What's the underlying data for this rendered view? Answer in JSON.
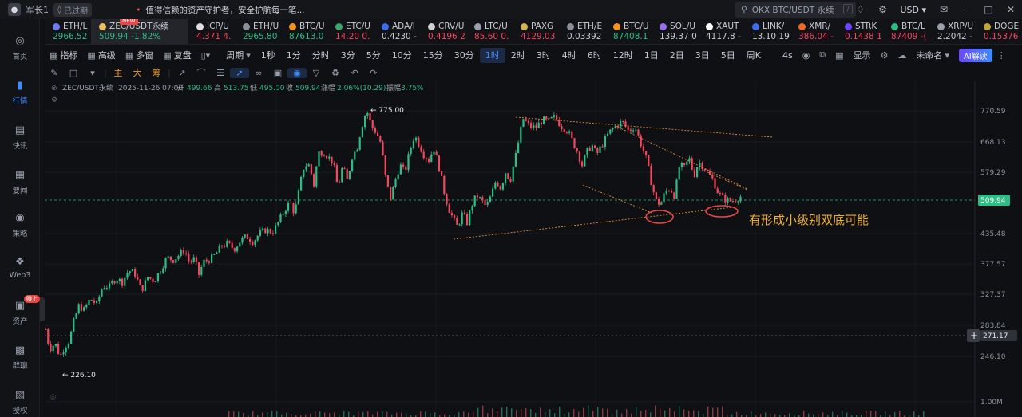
{
  "topbar": {
    "username": "军长1",
    "expired_label": "已过期",
    "notice": "值得信赖的资产守护者，安全护航每一笔...",
    "search_placeholder": "OKX BTC/USDT 永续",
    "search_shortcut": "/",
    "currency": "USD"
  },
  "sidebar": {
    "items": [
      {
        "label": "首页",
        "icon": "home-icon"
      },
      {
        "label": "行情",
        "icon": "bar-chart-icon"
      },
      {
        "label": "快讯",
        "icon": "news-icon"
      },
      {
        "label": "要闻",
        "icon": "article-icon"
      },
      {
        "label": "策略",
        "icon": "strategy-icon"
      },
      {
        "label": "Web3",
        "icon": "web3-icon"
      },
      {
        "label": "资产",
        "icon": "wallet-icon",
        "badge": "赚上"
      },
      {
        "label": "群聊",
        "icon": "chat-icon"
      },
      {
        "label": "授权",
        "icon": "key-icon"
      }
    ]
  },
  "tickers": [
    {
      "name": "ETH/L",
      "price": "2966.52",
      "color": "#2ebd85",
      "dot": "#6c7cf0"
    },
    {
      "name": "ZEC/USDT永续",
      "price": "509.94",
      "change": "-1.82%",
      "active": true,
      "badge": "NEW",
      "dot": "#f0c060"
    },
    {
      "name": "ICP/U",
      "price": "4.371",
      "extra": "4.",
      "color": "#f6465d",
      "dot": "#e0e0e0"
    },
    {
      "name": "ETH/U",
      "price": "2965.80",
      "color": "#2ebd85",
      "dot": "#8a8f99"
    },
    {
      "name": "BTC/U",
      "price": "87613.0",
      "color": "#2ebd85",
      "dot": "#f7931a"
    },
    {
      "name": "ETC/U",
      "price": "14.20",
      "extra": "0.",
      "color": "#f6465d",
      "dot": "#3fa66b"
    },
    {
      "name": "ADA/I",
      "price": "0.4230",
      "extra": "-",
      "color": "#c9ccd3",
      "dot": "#3d6cf0"
    },
    {
      "name": "CRV/U",
      "price": "0.4196",
      "extra": "2",
      "color": "#f6465d",
      "dot": "#d0d0d0"
    },
    {
      "name": "LTC/U",
      "price": "85.60",
      "extra": "0.",
      "color": "#f6465d",
      "dot": "#9aa0ab"
    },
    {
      "name": "PAXG",
      "price": "4129.03",
      "color": "#f6465d",
      "dot": "#d4b24c"
    },
    {
      "name": "ETH/E",
      "price": "0.03392",
      "color": "#c9ccd3",
      "dot": "#8a8f99"
    },
    {
      "name": "BTC/U",
      "price": "87408.1",
      "color": "#2ebd85",
      "dot": "#f7931a"
    },
    {
      "name": "SOL/U",
      "price": "139.37",
      "extra": "0",
      "color": "#c9ccd3",
      "dot": "#9b6cf0"
    },
    {
      "name": "XAUT",
      "price": "4117.8",
      "extra": "-",
      "color": "#c9ccd3",
      "dot": "#ffffff"
    },
    {
      "name": "LINK/",
      "price": "13.10",
      "extra": "19",
      "color": "#c9ccd3",
      "dot": "#3d6cf0"
    },
    {
      "name": "XMR/",
      "price": "386.04",
      "extra": "-",
      "color": "#f6465d",
      "dot": "#f26822"
    },
    {
      "name": "STRK",
      "price": "0.1438",
      "extra": "1",
      "color": "#f6465d",
      "dot": "#6c47ff"
    },
    {
      "name": "BTC/L",
      "price": "87409",
      "extra": "-(",
      "color": "#f6465d",
      "dot": "#2ebd85"
    },
    {
      "name": "XRP/U",
      "price": "2.2042",
      "extra": "-",
      "color": "#c9ccd3",
      "dot": "#9aa0ab"
    },
    {
      "name": "DOGE",
      "price": "0.15376",
      "color": "#f6465d",
      "dot": "#c2a633"
    }
  ],
  "toolbar": {
    "indicators": "指标",
    "advanced": "高级",
    "multi_window": "多窗",
    "replay": "复盘",
    "period": "周期",
    "periods": [
      "1秒",
      "1分",
      "分时",
      "3分",
      "5分",
      "10分",
      "15分",
      "30分",
      "1时",
      "2时",
      "3时",
      "4时",
      "6时",
      "12时",
      "1日",
      "2日",
      "3日",
      "5日",
      "周K"
    ],
    "active_period": "1时",
    "seconds_label": "4s",
    "display": "显示",
    "unnamed": "未命名",
    "ai_button": "AI解读"
  },
  "drawtools": {
    "indicator_chars": [
      "主",
      "大",
      "筹"
    ]
  },
  "chart_header": {
    "symbol": "ZEC/USDT永续",
    "datetime": "2025-11-26 07:00",
    "open_label": "开",
    "open": "499.66",
    "high_label": "高",
    "high": "513.75",
    "low_label": "低",
    "low": "495.00",
    "close_label": "收",
    "close": "509.94",
    "change_label": "涨幅",
    "change": "2.06%(10.29)",
    "amplitude_label": "振幅",
    "amplitude": "3.75%"
  },
  "chart_data": {
    "type": "candlestick",
    "title": "ZEC/USDT永续",
    "interval": "1时",
    "y_ticks": [
      "770.59",
      "668.13",
      "579.29",
      "509.94",
      "435.48",
      "377.57",
      "327.37",
      "283.84",
      "271.17",
      "246.10",
      "1.00M"
    ],
    "current_price": "509.94",
    "crosshair_price": "271.17",
    "high_marker": "775.00",
    "low_marker": "226.10",
    "annotation": "有形成小级别双底可能",
    "colors": {
      "up": "#2ebd85",
      "down": "#f6465d",
      "trendline": "#e08a3c",
      "annotation": "#f0b030"
    },
    "path_points": [
      [
        0,
        279
      ],
      [
        5,
        255
      ],
      [
        12,
        262
      ],
      [
        18,
        246
      ],
      [
        24,
        258
      ],
      [
        30,
        266
      ],
      [
        36,
        292
      ],
      [
        42,
        312
      ],
      [
        48,
        305
      ],
      [
        56,
        321
      ],
      [
        64,
        313
      ],
      [
        72,
        341
      ],
      [
        80,
        340
      ],
      [
        88,
        354
      ],
      [
        96,
        347
      ],
      [
        104,
        367
      ],
      [
        112,
        361
      ],
      [
        120,
        333
      ],
      [
        128,
        356
      ],
      [
        136,
        349
      ],
      [
        144,
        368
      ],
      [
        152,
        390
      ],
      [
        160,
        385
      ],
      [
        168,
        396
      ],
      [
        174,
        405
      ],
      [
        180,
        380
      ],
      [
        186,
        387
      ],
      [
        192,
        360
      ],
      [
        198,
        382
      ],
      [
        206,
        386
      ],
      [
        214,
        398
      ],
      [
        220,
        412
      ],
      [
        228,
        416
      ],
      [
        236,
        406
      ],
      [
        244,
        422
      ],
      [
        252,
        430
      ],
      [
        260,
        420
      ],
      [
        268,
        436
      ],
      [
        276,
        444
      ],
      [
        284,
        438
      ],
      [
        292,
        462
      ],
      [
        300,
        490
      ],
      [
        306,
        506
      ],
      [
        312,
        480
      ],
      [
        318,
        540
      ],
      [
        324,
        600
      ],
      [
        330,
        600
      ],
      [
        336,
        548
      ],
      [
        342,
        636
      ],
      [
        348,
        640
      ],
      [
        354,
        624
      ],
      [
        360,
        608
      ],
      [
        366,
        540
      ],
      [
        372,
        596
      ],
      [
        378,
        556
      ],
      [
        384,
        625
      ],
      [
        390,
        650
      ],
      [
        396,
        720
      ],
      [
        402,
        775
      ],
      [
        408,
        720
      ],
      [
        414,
        700
      ],
      [
        420,
        664
      ],
      [
        426,
        560
      ],
      [
        432,
        515
      ],
      [
        438,
        560
      ],
      [
        444,
        600
      ],
      [
        450,
        580
      ],
      [
        456,
        640
      ],
      [
        462,
        690
      ],
      [
        468,
        660
      ],
      [
        474,
        630
      ],
      [
        480,
        615
      ],
      [
        486,
        650
      ],
      [
        492,
        600
      ],
      [
        498,
        540
      ],
      [
        504,
        495
      ],
      [
        510,
        470
      ],
      [
        516,
        450
      ],
      [
        522,
        480
      ],
      [
        528,
        460
      ],
      [
        534,
        500
      ],
      [
        540,
        522
      ],
      [
        546,
        508
      ],
      [
        552,
        495
      ],
      [
        558,
        520
      ],
      [
        564,
        560
      ],
      [
        570,
        540
      ],
      [
        576,
        580
      ],
      [
        582,
        560
      ],
      [
        590,
        640
      ],
      [
        598,
        745
      ],
      [
        606,
        720
      ],
      [
        614,
        715
      ],
      [
        622,
        740
      ],
      [
        630,
        735
      ],
      [
        638,
        750
      ],
      [
        646,
        720
      ],
      [
        654,
        705
      ],
      [
        660,
        670
      ],
      [
        666,
        640
      ],
      [
        672,
        600
      ],
      [
        678,
        640
      ],
      [
        684,
        660
      ],
      [
        690,
        630
      ],
      [
        698,
        665
      ],
      [
        706,
        700
      ],
      [
        714,
        720
      ],
      [
        722,
        735
      ],
      [
        730,
        705
      ],
      [
        738,
        720
      ],
      [
        746,
        660
      ],
      [
        752,
        620
      ],
      [
        758,
        560
      ],
      [
        764,
        510
      ],
      [
        770,
        500
      ],
      [
        776,
        530
      ],
      [
        782,
        540
      ],
      [
        788,
        520
      ],
      [
        794,
        600
      ],
      [
        800,
        592
      ],
      [
        806,
        620
      ],
      [
        812,
        570
      ],
      [
        818,
        610
      ],
      [
        824,
        595
      ],
      [
        830,
        575
      ],
      [
        836,
        560
      ],
      [
        842,
        530
      ],
      [
        848,
        515
      ],
      [
        854,
        510
      ],
      [
        860,
        508
      ],
      [
        866,
        515
      ],
      [
        872,
        520
      ]
    ]
  }
}
